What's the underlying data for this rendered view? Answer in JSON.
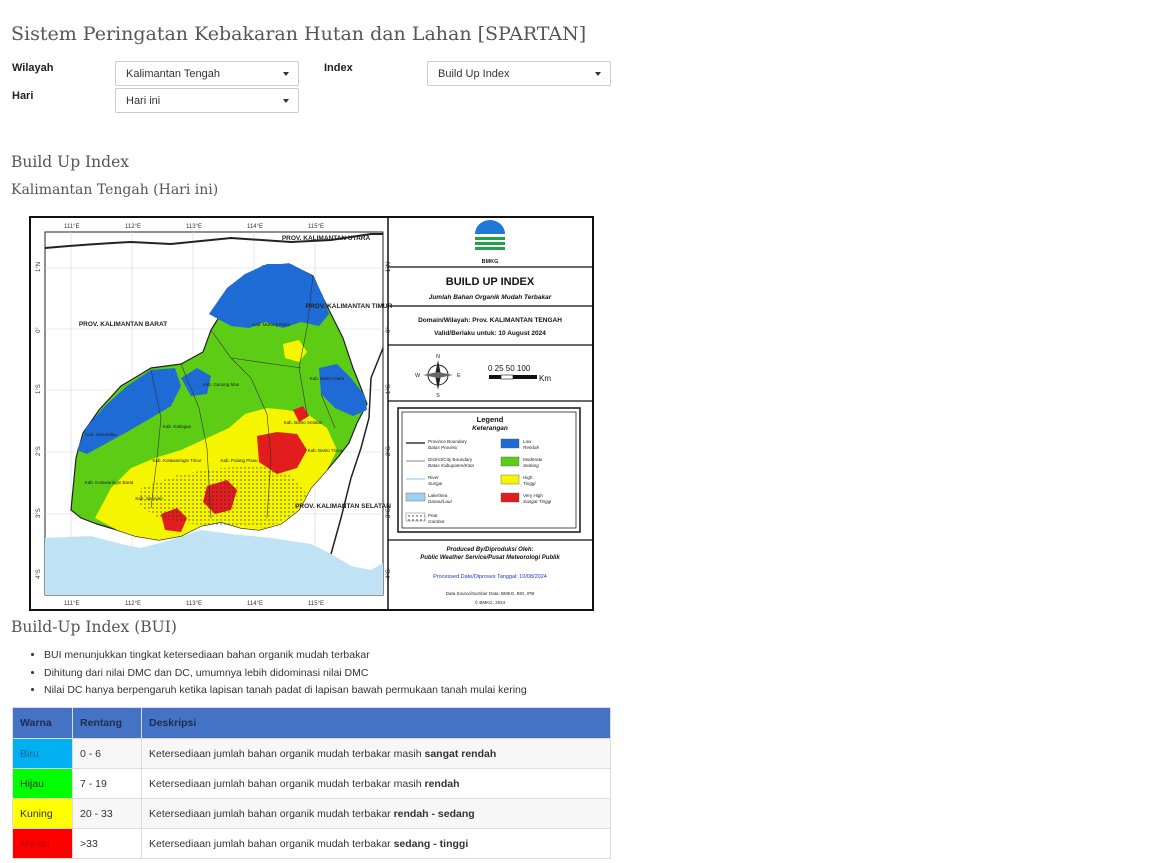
{
  "page": {
    "title": "Sistem Peringatan Kebakaran Hutan dan Lahan [SPARTAN]"
  },
  "form": {
    "wilayah_label": "Wilayah",
    "wilayah_value": "Kalimantan Tengah",
    "hari_label": "Hari",
    "hari_value": "Hari ini",
    "index_label": "Index",
    "index_value": "Build Up Index"
  },
  "section": {
    "title": "Build Up Index",
    "subtitle": "Kalimantan Tengah (Hari ini)"
  },
  "map": {
    "lon_ticks": [
      "111°E",
      "112°E",
      "113°E",
      "114°E",
      "115°E"
    ],
    "lat_ticks": [
      "1°N",
      "0°",
      "1°S",
      "2°S",
      "3°S",
      "4°S"
    ],
    "regions": [
      "PROV. KALIMANTAN UTARA",
      "PROV. KALIMANTAN TIMUR",
      "PROV. KALIMANTAN BARAT",
      "PROV. KALIMANTAN SELATAN"
    ],
    "districts": [
      "Kab. Murung Raya",
      "Kab. Barito Utara",
      "Kab. Gunung Mas",
      "Kab. Lamandau",
      "Kab. Katingan",
      "Kab. Barito Selatan",
      "Kab. Barito Timur",
      "Kab. Kotawaringin Timur",
      "Kab. Pulang Pisau",
      "Kab. Kotawaringin Barat",
      "Kab. Seruyan"
    ],
    "logo_text": "BMKG",
    "panel_title": "BUILD UP INDEX",
    "panel_subtitle": "Jumlah Bahan Organik Mudah Terbakar",
    "domain_line": "Domain/Wilayah: Prov. KALIMANTAN TENGAH",
    "valid_line": "Valid/Berlaku untuk: 10 August 2024",
    "scale_text": "0  25 50     100",
    "scale_unit": "Km",
    "compass": {
      "n": "N",
      "s": "S",
      "e": "E",
      "w": "W"
    },
    "legend_title": "Legend",
    "legend_subtitle": "Keterangan",
    "legend_lines": [
      {
        "label": "Province Boundary",
        "sub": "Batas Provinsi"
      },
      {
        "label": "District/City Boundary",
        "sub": "Batas Kabupaten/Kota"
      },
      {
        "label": "River",
        "sub": "Sungai"
      },
      {
        "label": "Lake/Sea",
        "sub": "Danau/Laut"
      },
      {
        "label": "Peat",
        "sub": "Gambut"
      }
    ],
    "legend_classes": [
      {
        "label": "Low",
        "sub": "Rendah",
        "color": "#1e6bd6"
      },
      {
        "label": "Moderate",
        "sub": "Sedang",
        "color": "#5ccc14"
      },
      {
        "label": "High",
        "sub": "Tinggi",
        "color": "#f5f500"
      },
      {
        "label": "Very High",
        "sub": "Sangat Tinggi",
        "color": "#e11d1d"
      }
    ],
    "produced_label": "Produced By/Diproduksi Oleh:",
    "produced_by": "Public Weather Service/Pusat Meteorologi Publik",
    "processed": "Processed Date/Diproses Tanggal: 10/08/2024",
    "data_source": "Data Source/Sumber Data: BMKG, BIG, IPB",
    "copyright": "© BMKG, 2024"
  },
  "bui": {
    "title": "Build-Up Index (BUI)",
    "bullets": [
      "BUI menunjukkan tingkat ketersediaan bahan organik mudah terbakar",
      "Dihitung dari nilai DMC dan DC, umumnya lebih didominasi nilai DMC",
      "Nilai DC hanya berpengaruh ketika lapisan tanah padat di lapisan bawah permukaan tanah mulai kering"
    ]
  },
  "table": {
    "headers": [
      "Warna",
      "Rentang",
      "Deskripsi"
    ],
    "rows": [
      {
        "warna": "Biru",
        "color": "#00b0f0",
        "rentang": "0 - 6",
        "desc": "Ketersediaan jumlah bahan organik mudah terbakar masih ",
        "bold": "sangat rendah"
      },
      {
        "warna": "Hijau",
        "color": "#00ff00",
        "rentang": "7 - 19",
        "desc": "Ketersediaan jumlah bahan organik mudah terbakar masih ",
        "bold": "rendah"
      },
      {
        "warna": "Kuning",
        "color": "#ffff00",
        "rentang": "20 - 33",
        "desc": "Ketersediaan jumlah bahan organik mudah terbakar ",
        "bold": "rendah - sedang"
      },
      {
        "warna": "Merah",
        "color": "#ff0000",
        "rentang": ">33",
        "desc": "Ketersediaan jumlah bahan organik mudah terbakar ",
        "bold": "sedang - tinggi"
      }
    ]
  }
}
